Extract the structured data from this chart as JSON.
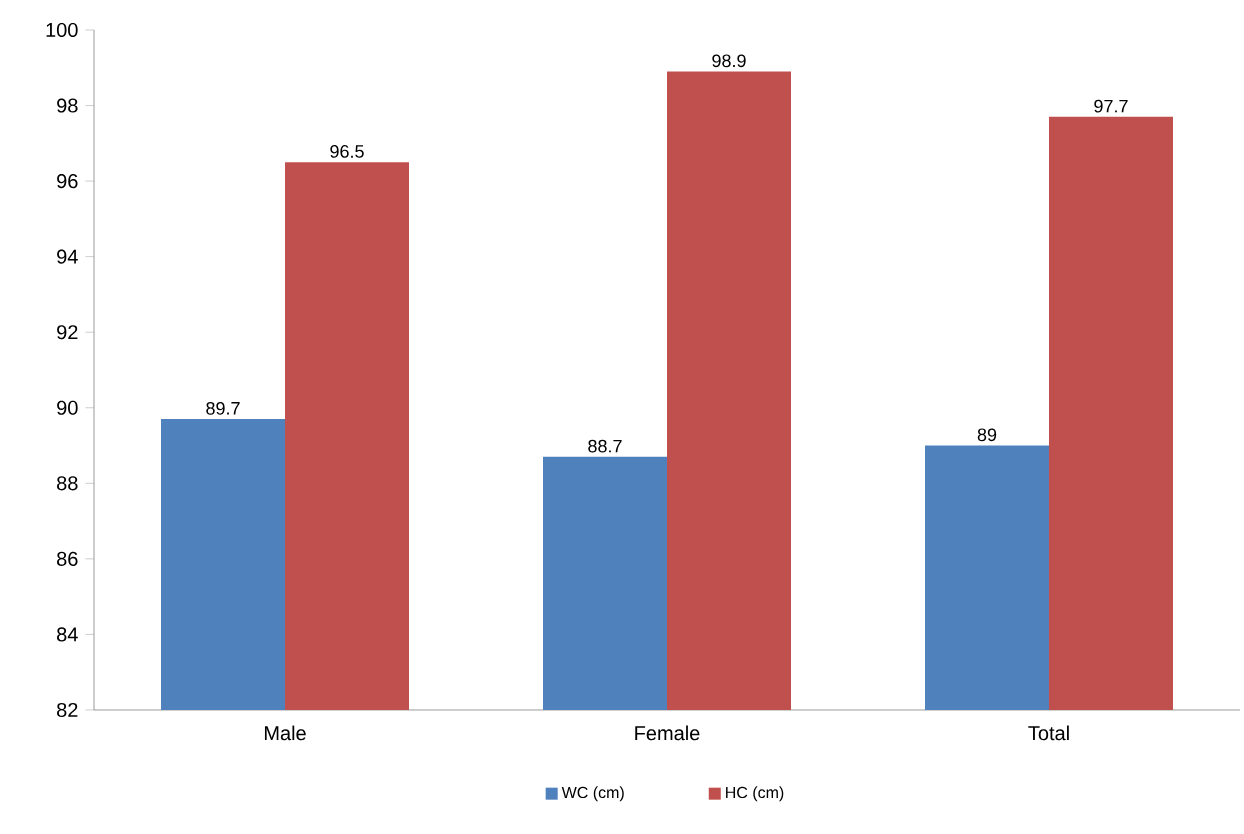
{
  "chart_data": {
    "type": "bar",
    "categories": [
      "Male",
      "Female",
      "Total"
    ],
    "series": [
      {
        "name": "WC (cm)",
        "color": "#4f81bd",
        "values": [
          89.7,
          88.7,
          89
        ]
      },
      {
        "name": "HC (cm)",
        "color": "#c0504d",
        "values": [
          96.5,
          98.9,
          97.7
        ]
      }
    ],
    "ylim": [
      82,
      100
    ],
    "yticks": [
      82,
      84,
      86,
      88,
      90,
      92,
      94,
      96,
      98,
      100
    ],
    "data_labels": true,
    "legend": "bottom"
  }
}
